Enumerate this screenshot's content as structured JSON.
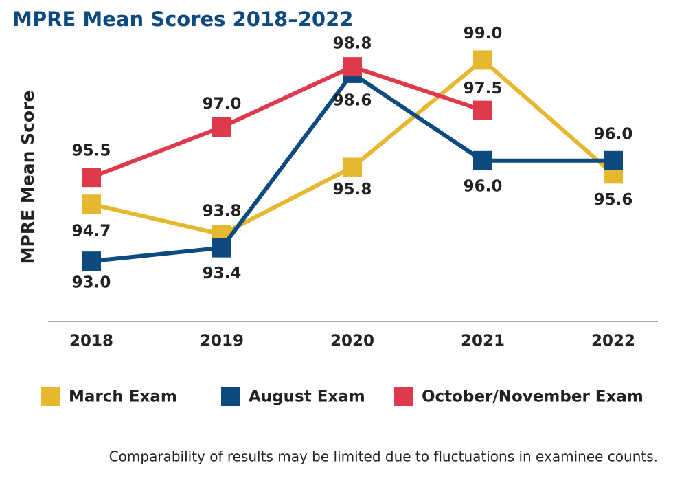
{
  "chart_data": {
    "type": "line",
    "title": "MPRE Mean Scores 2018–2022",
    "y_label": "MPRE Mean Score",
    "note": "Comparability of results may be limited due to fluctuations in examinee counts.",
    "categories": [
      "2018",
      "2019",
      "2020",
      "2021",
      "2022"
    ],
    "ylim": [
      91.2,
      99.5
    ],
    "series": [
      {
        "name": "March Exam",
        "color": "#e5b830",
        "values": [
          94.7,
          93.8,
          95.8,
          99.0,
          95.6
        ],
        "value_labels": [
          "94.7",
          "93.8",
          "95.8",
          "99.0",
          "95.6"
        ]
      },
      {
        "name": "August Exam",
        "color": "#0c4a80",
        "values": [
          93.0,
          93.4,
          98.6,
          96.0,
          96.0
        ],
        "value_labels": [
          "93.0",
          "93.4",
          "98.6",
          "96.0",
          "96.0"
        ]
      },
      {
        "name": "October/November Exam",
        "color": "#df3a4c",
        "values": [
          95.5,
          97.0,
          98.8,
          97.5,
          null
        ],
        "value_labels": [
          "95.5",
          "97.0",
          "98.8",
          "97.5",
          null
        ]
      }
    ]
  }
}
